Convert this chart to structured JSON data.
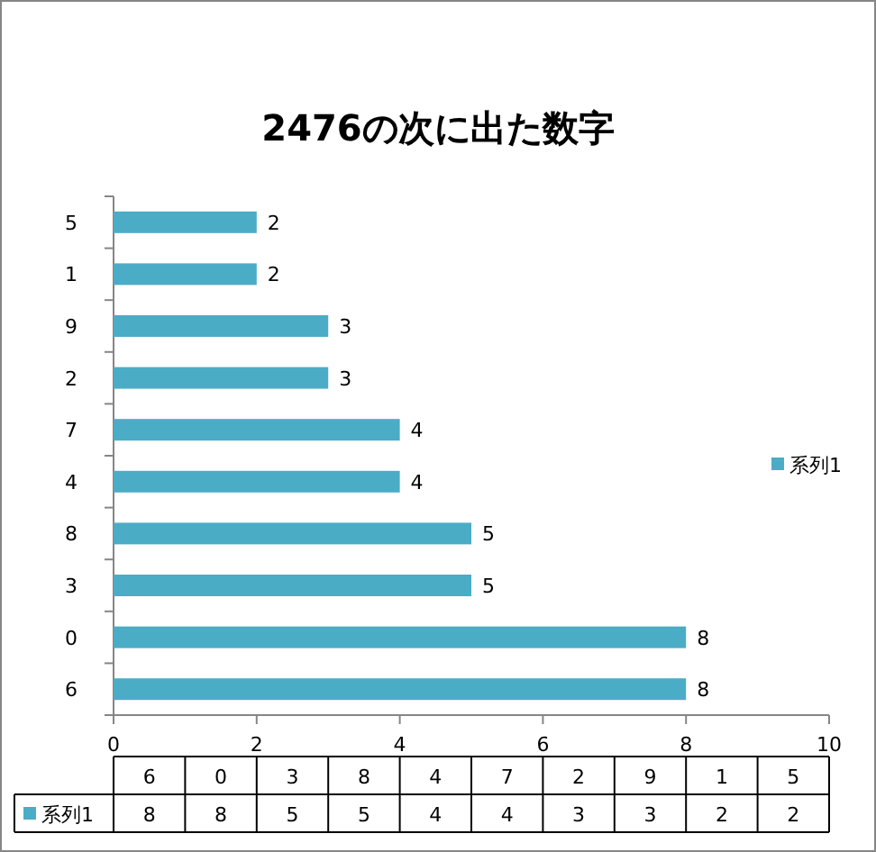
{
  "chart_data": {
    "type": "bar",
    "orientation": "horizontal",
    "title": "2476の次に出た数字",
    "categories": [
      "5",
      "1",
      "9",
      "2",
      "7",
      "4",
      "8",
      "3",
      "0",
      "6"
    ],
    "series": [
      {
        "name": "系列1",
        "color": "#4bacc6",
        "values": [
          2,
          2,
          3,
          3,
          4,
          4,
          5,
          5,
          8,
          8
        ]
      }
    ],
    "xlim": [
      0,
      10
    ],
    "xticks": [
      0,
      2,
      4,
      6,
      8,
      10
    ],
    "data_labels": true,
    "legend": "right"
  }
}
